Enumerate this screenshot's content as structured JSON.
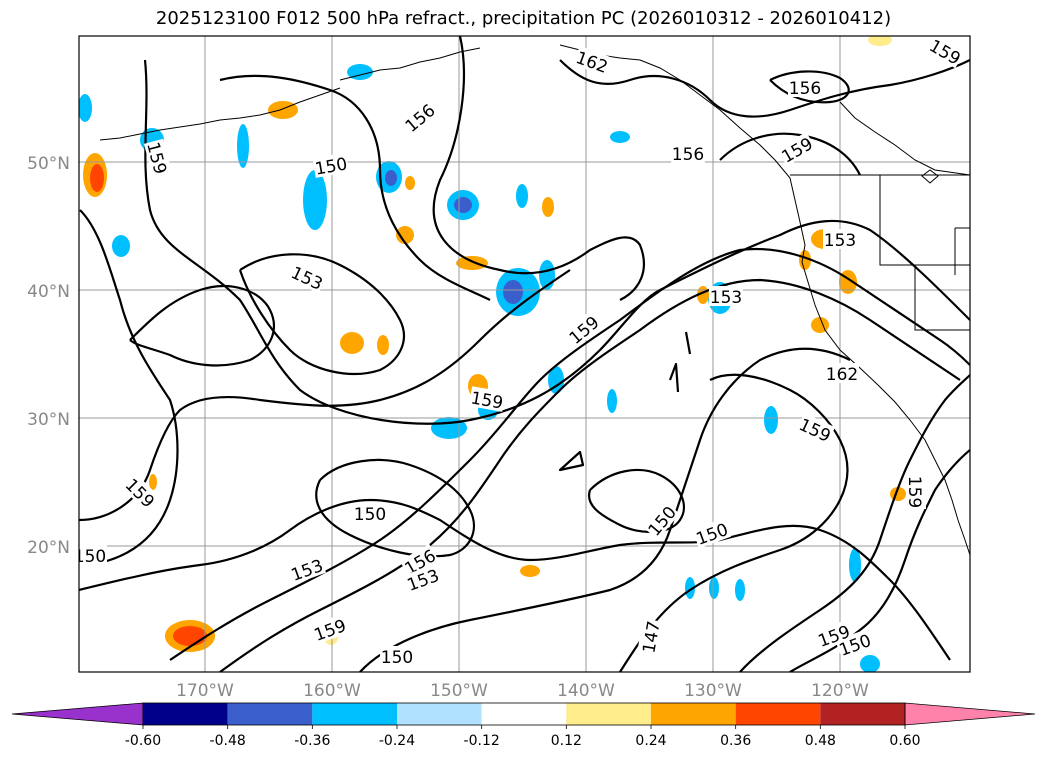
{
  "title": "2025123100 F012 500 hPa refract., precipitation PC (2026010312 - 2026010412)",
  "map": {
    "lat_labels": [
      "50°N",
      "40°N",
      "30°N",
      "20°N"
    ],
    "lon_labels": [
      "170°W",
      "160°W",
      "150°W",
      "140°W",
      "130°W",
      "120°W"
    ],
    "grid": true,
    "colors": {
      "border": "#000000",
      "gridline": "#999999",
      "contour": "#000000"
    },
    "contour_labels": [
      "162",
      "156",
      "159",
      "156",
      "156",
      "159",
      "159",
      "153",
      "153",
      "159",
      "153",
      "162",
      "159",
      "159",
      "159",
      "159",
      "150",
      "156",
      "153",
      "153",
      "159",
      "150",
      "150",
      "150",
      "147",
      "150",
      "150",
      "150",
      "159"
    ]
  },
  "colorbar": {
    "labels": [
      "-0.60",
      "-0.48",
      "-0.36",
      "-0.24",
      "-0.12",
      "0.12",
      "0.24",
      "0.36",
      "0.48",
      "0.60"
    ],
    "colors": [
      "#9932cc",
      "#00008b",
      "#3a5fcd",
      "#00bfff",
      "#b0e2ff",
      "#ffffff",
      "#ffec8b",
      "#ffa500",
      "#ff4500",
      "#b22222",
      "#ff82ab"
    ],
    "extend": "both"
  }
}
